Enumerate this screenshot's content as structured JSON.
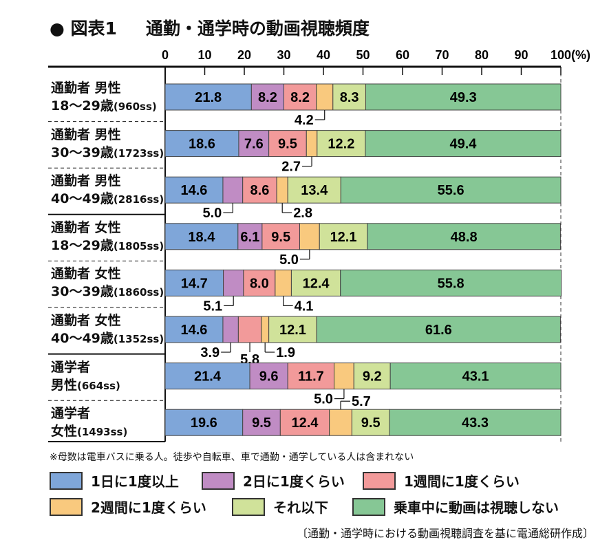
{
  "title": {
    "figure": "● 図表1",
    "text": "通勤・通学時の動画視聴頻度"
  },
  "chart_data": {
    "type": "bar",
    "orientation": "horizontal",
    "stacked": true,
    "xlim": [
      0,
      100
    ],
    "xticks": [
      "0",
      "10",
      "20",
      "30",
      "40",
      "50",
      "60",
      "70",
      "80",
      "90",
      "100(%)"
    ],
    "categories": [
      {
        "line1": "通勤者 男性",
        "line2": "18〜29歳",
        "n": "(960ss)"
      },
      {
        "line1": "通勤者 男性",
        "line2": "30〜39歳",
        "n": "(1723ss)"
      },
      {
        "line1": "通勤者 男性",
        "line2": "40〜49歳",
        "n": "(2816ss)"
      },
      {
        "line1": "通勤者 女性",
        "line2": "18〜29歳",
        "n": "(1805ss)"
      },
      {
        "line1": "通勤者 女性",
        "line2": "30〜39歳",
        "n": "(1860ss)"
      },
      {
        "line1": "通勤者 女性",
        "line2": "40〜49歳",
        "n": "(1352ss)"
      },
      {
        "line1": "通学者",
        "line2": "男性",
        "n": "(664ss)"
      },
      {
        "line1": "通学者",
        "line2": "女性",
        "n": "(1493ss)"
      }
    ],
    "series": [
      {
        "name": "1日に1度以上",
        "color": "#7fa6d9",
        "values": [
          21.8,
          18.6,
          14.6,
          18.4,
          14.7,
          14.6,
          21.4,
          19.6
        ]
      },
      {
        "name": "2日に1度くらい",
        "color": "#c08cc4",
        "values": [
          8.2,
          7.6,
          5.0,
          6.1,
          5.1,
          3.9,
          9.6,
          9.5
        ]
      },
      {
        "name": "1週間に1度くらい",
        "color": "#f29a9a",
        "values": [
          8.2,
          9.5,
          8.6,
          9.5,
          8.0,
          5.8,
          11.7,
          12.4
        ]
      },
      {
        "name": "2週間に1度くらい",
        "color": "#f9c97e",
        "values": [
          4.2,
          2.7,
          2.8,
          5.0,
          4.1,
          1.9,
          5.0,
          5.7
        ]
      },
      {
        "name": "それ以下",
        "color": "#d0e29a",
        "values": [
          8.3,
          12.2,
          13.4,
          12.1,
          12.4,
          12.1,
          9.2,
          9.5
        ]
      },
      {
        "name": "乗車中に動画は視聴しない",
        "color": "#86c795",
        "values": [
          49.3,
          49.4,
          55.6,
          48.8,
          55.8,
          61.6,
          43.1,
          43.3
        ]
      }
    ]
  },
  "note": "※母数は電車バスに乗る人。徒歩や自転車、車で通勤・通学している人は含まれない",
  "source": "〔通勤・通学時における動画視聴調査を基に電通総研作成〕"
}
